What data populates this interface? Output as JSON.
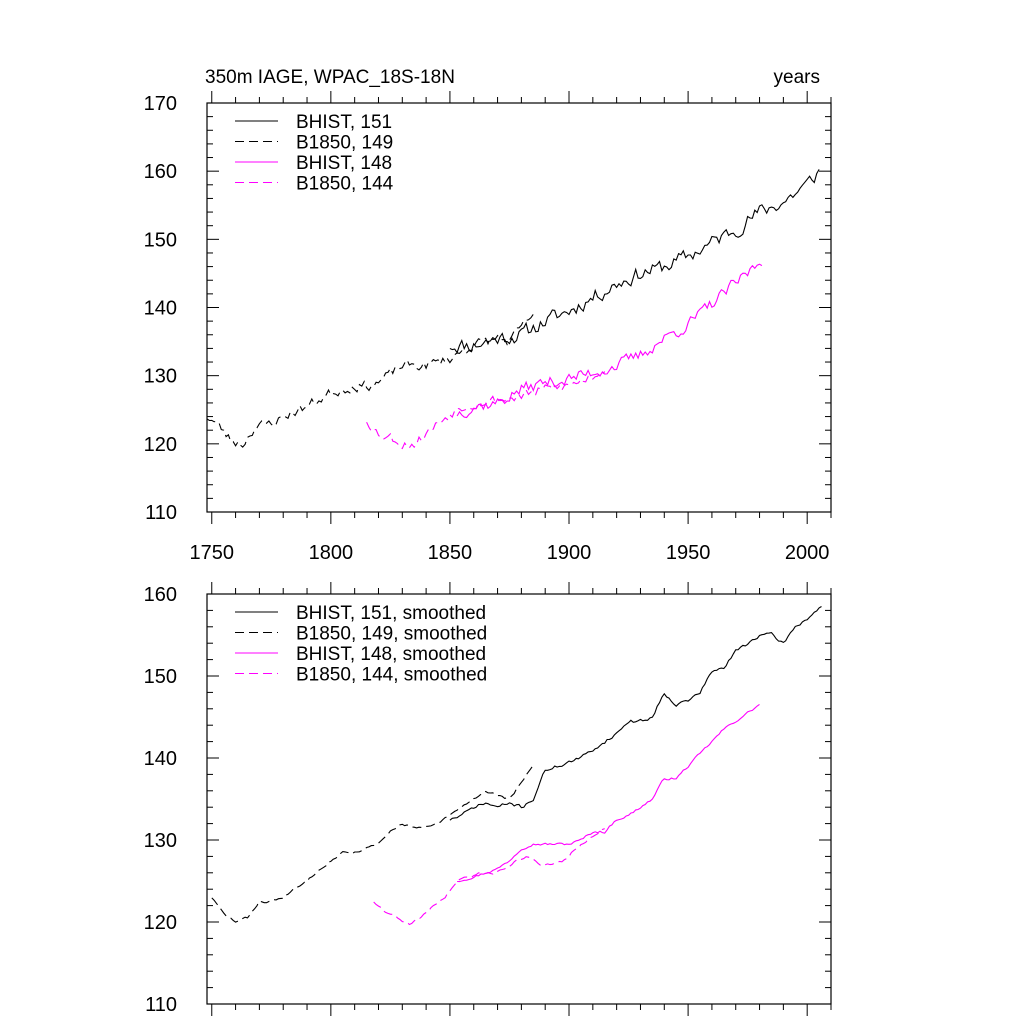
{
  "chart_data": [
    {
      "type": "line",
      "title_left": "350m IAGE, WPAC_18S-18N",
      "title_right": "years",
      "xlim": [
        1748,
        2010
      ],
      "ylim": [
        110,
        170
      ],
      "y_ticks": [
        110,
        120,
        130,
        140,
        150,
        160,
        170
      ],
      "x_ticks": [
        1750,
        1800,
        1850,
        1900,
        1950,
        2000
      ],
      "show_x_tick_labels": true,
      "series": [
        {
          "name": "BHIST, 151",
          "color": "#000000",
          "dash": "solid",
          "x_start": 1850,
          "x_end": 2005,
          "x_step": 1,
          "anchors": [
            [
              1850,
              134.5
            ],
            [
              1860,
              134.5
            ],
            [
              1870,
              135.5
            ],
            [
              1880,
              136
            ],
            [
              1890,
              138
            ],
            [
              1900,
              139.5
            ],
            [
              1910,
              141.5
            ],
            [
              1920,
              143.5
            ],
            [
              1930,
              145
            ],
            [
              1940,
              146
            ],
            [
              1950,
              147.5
            ],
            [
              1960,
              149.5
            ],
            [
              1970,
              151.5
            ],
            [
              1980,
              154
            ],
            [
              1990,
              155.5
            ],
            [
              2000,
              158
            ],
            [
              2005,
              160
            ]
          ],
          "noise_amp": 1.8,
          "seed": 11
        },
        {
          "name": "B1850, 149",
          "color": "#000000",
          "dash": "dashed",
          "x_start": 1748,
          "x_end": 1885,
          "x_step": 1,
          "anchors": [
            [
              1748,
              124
            ],
            [
              1752,
              123
            ],
            [
              1758,
              120.5
            ],
            [
              1763,
              120
            ],
            [
              1768,
              122.5
            ],
            [
              1775,
              123
            ],
            [
              1783,
              124.5
            ],
            [
              1790,
              125.5
            ],
            [
              1800,
              127.5
            ],
            [
              1810,
              128.5
            ],
            [
              1815,
              128.5
            ],
            [
              1820,
              129
            ],
            [
              1830,
              131.5
            ],
            [
              1840,
              131.5
            ],
            [
              1850,
              132.5
            ],
            [
              1860,
              134.5
            ],
            [
              1870,
              135.5
            ],
            [
              1875,
              135
            ],
            [
              1885,
              139
            ]
          ],
          "noise_amp": 1.2,
          "seed": 23
        },
        {
          "name": "BHIST, 148",
          "color": "#ff00ff",
          "dash": "solid",
          "x_start": 1853,
          "x_end": 1981,
          "x_step": 1,
          "anchors": [
            [
              1853,
              124.5
            ],
            [
              1860,
              125.5
            ],
            [
              1870,
              126
            ],
            [
              1880,
              128
            ],
            [
              1890,
              129
            ],
            [
              1900,
              129.5
            ],
            [
              1910,
              130.5
            ],
            [
              1920,
              131.5
            ],
            [
              1930,
              133
            ],
            [
              1940,
              135.5
            ],
            [
              1950,
              137.5
            ],
            [
              1960,
              140.5
            ],
            [
              1970,
              143.5
            ],
            [
              1981,
              147
            ]
          ],
          "noise_amp": 1.5,
          "seed": 37
        },
        {
          "name": "B1850, 144",
          "color": "#ff00ff",
          "dash": "dashed",
          "x_start": 1815,
          "x_end": 1915,
          "x_step": 1,
          "anchors": [
            [
              1815,
              123.5
            ],
            [
              1820,
              121.5
            ],
            [
              1825,
              121
            ],
            [
              1830,
              120
            ],
            [
              1835,
              120
            ],
            [
              1840,
              121.5
            ],
            [
              1845,
              123
            ],
            [
              1850,
              124.5
            ],
            [
              1855,
              125.5
            ],
            [
              1860,
              126
            ],
            [
              1870,
              126.5
            ],
            [
              1880,
              127
            ],
            [
              1890,
              128
            ],
            [
              1900,
              128.5
            ],
            [
              1910,
              130
            ],
            [
              1915,
              131
            ]
          ],
          "noise_amp": 1.2,
          "seed": 53
        }
      ],
      "legend": {
        "position": "top-left",
        "entries": [
          "BHIST, 151",
          "B1850, 149",
          "BHIST, 148",
          "B1850, 144"
        ]
      }
    },
    {
      "type": "line",
      "title_left": "",
      "title_right": "",
      "xlim": [
        1748,
        2010
      ],
      "ylim": [
        110,
        160
      ],
      "y_ticks": [
        110,
        120,
        130,
        140,
        150,
        160
      ],
      "x_ticks": [
        1750,
        1800,
        1850,
        1900,
        1950,
        2000
      ],
      "show_x_tick_labels": false,
      "series": [
        {
          "name": "BHIST, 151, smoothed",
          "color": "#000000",
          "dash": "solid",
          "x_start": 1850,
          "x_end": 2006,
          "x_step": 1,
          "anchors": [
            [
              1850,
              132.5
            ],
            [
              1855,
              133
            ],
            [
              1860,
              134
            ],
            [
              1865,
              134.5
            ],
            [
              1870,
              134
            ],
            [
              1875,
              134.5
            ],
            [
              1880,
              134
            ],
            [
              1885,
              135
            ],
            [
              1890,
              138.5
            ],
            [
              1895,
              139
            ],
            [
              1900,
              139.5
            ],
            [
              1905,
              140
            ],
            [
              1910,
              141
            ],
            [
              1915,
              142
            ],
            [
              1920,
              143
            ],
            [
              1925,
              144.5
            ],
            [
              1930,
              144.5
            ],
            [
              1935,
              145
            ],
            [
              1940,
              148
            ],
            [
              1945,
              146.5
            ],
            [
              1950,
              147
            ],
            [
              1955,
              148
            ],
            [
              1960,
              150.5
            ],
            [
              1965,
              151
            ],
            [
              1970,
              153
            ],
            [
              1975,
              154
            ],
            [
              1980,
              155
            ],
            [
              1985,
              155
            ],
            [
              1990,
              154
            ],
            [
              1995,
              156
            ],
            [
              2000,
              157
            ],
            [
              2006,
              158.5
            ]
          ],
          "noise_amp": 0.35,
          "seed": 71
        },
        {
          "name": "B1850, 149, smoothed",
          "color": "#000000",
          "dash": "dashed",
          "x_start": 1750,
          "x_end": 1885,
          "x_step": 1,
          "anchors": [
            [
              1750,
              123
            ],
            [
              1755,
              121
            ],
            [
              1760,
              120
            ],
            [
              1765,
              120.5
            ],
            [
              1770,
              122.5
            ],
            [
              1775,
              122.5
            ],
            [
              1780,
              123
            ],
            [
              1785,
              124
            ],
            [
              1790,
              125
            ],
            [
              1795,
              126.5
            ],
            [
              1800,
              127.5
            ],
            [
              1805,
              128.5
            ],
            [
              1810,
              128.5
            ],
            [
              1815,
              129
            ],
            [
              1820,
              129.5
            ],
            [
              1825,
              131
            ],
            [
              1830,
              132
            ],
            [
              1835,
              131.5
            ],
            [
              1840,
              131.5
            ],
            [
              1845,
              132
            ],
            [
              1850,
              133
            ],
            [
              1855,
              134
            ],
            [
              1860,
              135
            ],
            [
              1865,
              136
            ],
            [
              1870,
              135.5
            ],
            [
              1875,
              135
            ],
            [
              1880,
              137
            ],
            [
              1885,
              139
            ]
          ],
          "noise_amp": 0.25,
          "seed": 83
        },
        {
          "name": "BHIST, 148, smoothed",
          "color": "#ff00ff",
          "dash": "solid",
          "x_start": 1853,
          "x_end": 1980,
          "x_step": 1,
          "anchors": [
            [
              1853,
              125
            ],
            [
              1860,
              125.5
            ],
            [
              1865,
              126
            ],
            [
              1870,
              126.5
            ],
            [
              1875,
              127.5
            ],
            [
              1880,
              129
            ],
            [
              1885,
              129.5
            ],
            [
              1890,
              129.5
            ],
            [
              1895,
              129.5
            ],
            [
              1900,
              129.5
            ],
            [
              1905,
              130
            ],
            [
              1910,
              131
            ],
            [
              1915,
              131
            ],
            [
              1920,
              132.5
            ],
            [
              1925,
              133
            ],
            [
              1930,
              134
            ],
            [
              1935,
              135
            ],
            [
              1940,
              137.5
            ],
            [
              1945,
              137.5
            ],
            [
              1950,
              139
            ],
            [
              1955,
              140.5
            ],
            [
              1960,
              142
            ],
            [
              1965,
              143.5
            ],
            [
              1970,
              144.5
            ],
            [
              1975,
              145.5
            ],
            [
              1980,
              146.5
            ]
          ],
          "noise_amp": 0.25,
          "seed": 97
        },
        {
          "name": "B1850, 144, smoothed",
          "color": "#ff00ff",
          "dash": "dashed",
          "x_start": 1818,
          "x_end": 1915,
          "x_step": 1,
          "anchors": [
            [
              1818,
              122.5
            ],
            [
              1822,
              121.5
            ],
            [
              1828,
              120.5
            ],
            [
              1833,
              119.7
            ],
            [
              1838,
              120.5
            ],
            [
              1843,
              122
            ],
            [
              1848,
              123
            ],
            [
              1853,
              125
            ],
            [
              1858,
              125.5
            ],
            [
              1863,
              126
            ],
            [
              1868,
              126
            ],
            [
              1873,
              126.5
            ],
            [
              1878,
              127.5
            ],
            [
              1883,
              128
            ],
            [
              1888,
              127
            ],
            [
              1893,
              127
            ],
            [
              1898,
              127.5
            ],
            [
              1903,
              129
            ],
            [
              1908,
              130
            ],
            [
              1915,
              131.5
            ]
          ],
          "noise_amp": 0.25,
          "seed": 109
        }
      ],
      "legend": {
        "position": "top-left",
        "entries": [
          "BHIST, 151, smoothed",
          "B1850, 149, smoothed",
          "BHIST, 148, smoothed",
          "B1850, 144, smoothed"
        ]
      }
    }
  ]
}
